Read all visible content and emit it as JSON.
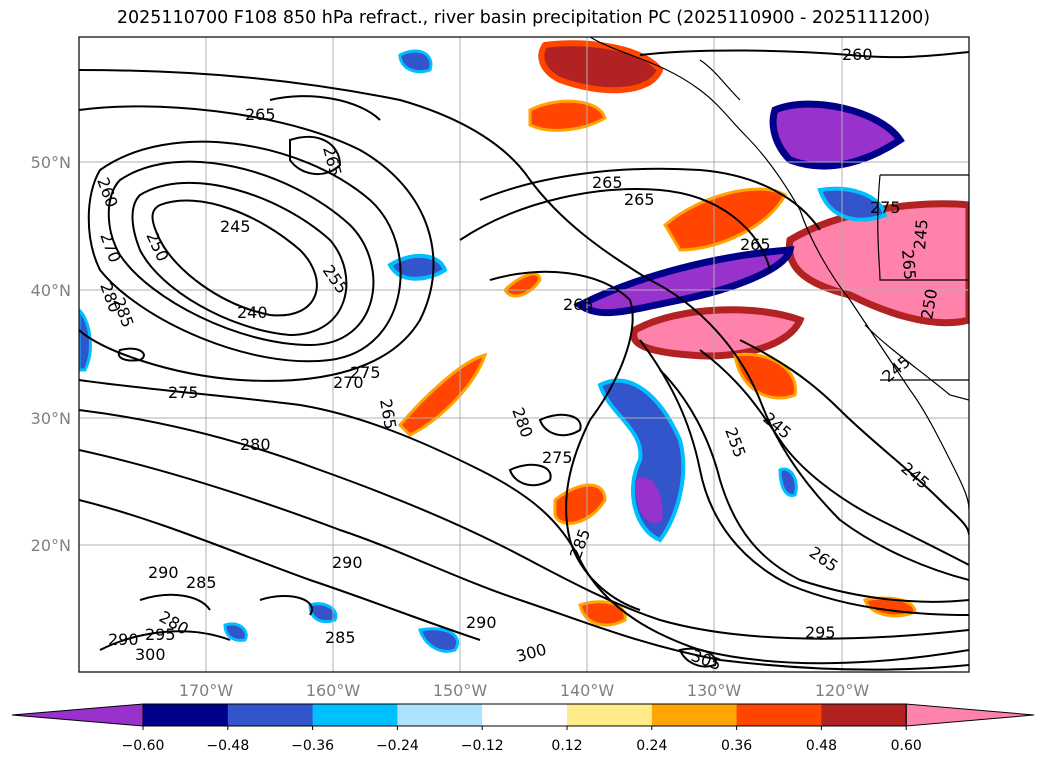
{
  "title": "2025110700 F108 850 hPa refract., river basin precipitation PC (2025110900 - 2025111200)",
  "map": {
    "lat_labels": [
      "50°N",
      "40°N",
      "30°N",
      "20°N"
    ],
    "lon_labels": [
      "170°W",
      "160°W",
      "150°W",
      "140°W",
      "130°W",
      "120°W"
    ],
    "contour_labels": [
      "260",
      "265",
      "265",
      "265",
      "265",
      "260",
      "270",
      "280",
      "285",
      "250",
      "245",
      "255",
      "240",
      "265",
      "265",
      "265",
      "275",
      "270",
      "275",
      "265",
      "280",
      "280",
      "275",
      "255",
      "245",
      "245",
      "285",
      "290",
      "285",
      "290",
      "280",
      "290",
      "295",
      "300",
      "285",
      "290",
      "300",
      "265",
      "295",
      "305",
      "275",
      "245",
      "245",
      "250"
    ]
  },
  "colorbar": {
    "ticks": [
      "−0.60",
      "−0.48",
      "−0.36",
      "−0.24",
      "−0.12",
      "0.12",
      "0.24",
      "0.36",
      "0.48",
      "0.60"
    ],
    "colors": [
      "#9932cc",
      "#00008b",
      "#3355cc",
      "#00bfff",
      "#aee3ff",
      "#ffffff",
      "#ffeb8a",
      "#ffa500",
      "#ff4500",
      "#b22222",
      "#ff82ab"
    ]
  }
}
